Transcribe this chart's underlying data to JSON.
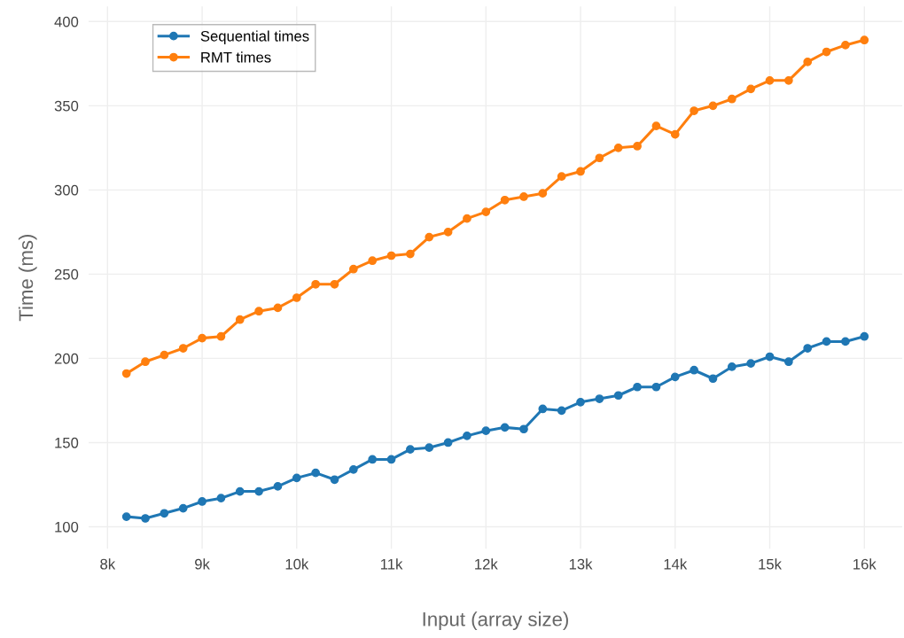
{
  "chart_data": {
    "type": "line",
    "xlabel": "Input (array size)",
    "ylabel": "Time (ms)",
    "x": [
      8200,
      8400,
      8600,
      8800,
      9000,
      9200,
      9400,
      9600,
      9800,
      10000,
      10200,
      10400,
      10600,
      10800,
      11000,
      11200,
      11400,
      11600,
      11800,
      12000,
      12200,
      12400,
      12600,
      12800,
      13000,
      13200,
      13400,
      13600,
      13800,
      14000,
      14200,
      14400,
      14600,
      14800,
      15000,
      15200,
      15400,
      15600,
      15800,
      16000
    ],
    "series": [
      {
        "name": "Sequential times",
        "color": "#1f77b4",
        "values": [
          106,
          105,
          108,
          111,
          115,
          117,
          121,
          121,
          124,
          129,
          132,
          128,
          134,
          140,
          140,
          146,
          147,
          150,
          154,
          157,
          159,
          158,
          170,
          169,
          174,
          176,
          178,
          183,
          183,
          189,
          193,
          188,
          195,
          197,
          201,
          198,
          206,
          210,
          210,
          213
        ]
      },
      {
        "name": "RMT times",
        "color": "#ff7f0e",
        "values": [
          191,
          198,
          202,
          206,
          212,
          213,
          223,
          228,
          230,
          236,
          244,
          244,
          253,
          258,
          261,
          262,
          272,
          275,
          283,
          287,
          294,
          296,
          298,
          308,
          311,
          319,
          325,
          326,
          338,
          333,
          347,
          350,
          354,
          360,
          365,
          365,
          376,
          382,
          386,
          389
        ]
      }
    ],
    "xlim": [
      7800,
      16400
    ],
    "ylim": [
      87,
      409
    ],
    "xticks": [
      {
        "value": 8000,
        "label": "8k"
      },
      {
        "value": 9000,
        "label": "9k"
      },
      {
        "value": 10000,
        "label": "10k"
      },
      {
        "value": 11000,
        "label": "11k"
      },
      {
        "value": 12000,
        "label": "12k"
      },
      {
        "value": 13000,
        "label": "13k"
      },
      {
        "value": 14000,
        "label": "14k"
      },
      {
        "value": 15000,
        "label": "15k"
      },
      {
        "value": 16000,
        "label": "16k"
      }
    ],
    "yticks": [
      100,
      150,
      200,
      250,
      300,
      350,
      400
    ],
    "grid": true,
    "legend": "top left",
    "marker": "circle",
    "line_style": "solid"
  }
}
